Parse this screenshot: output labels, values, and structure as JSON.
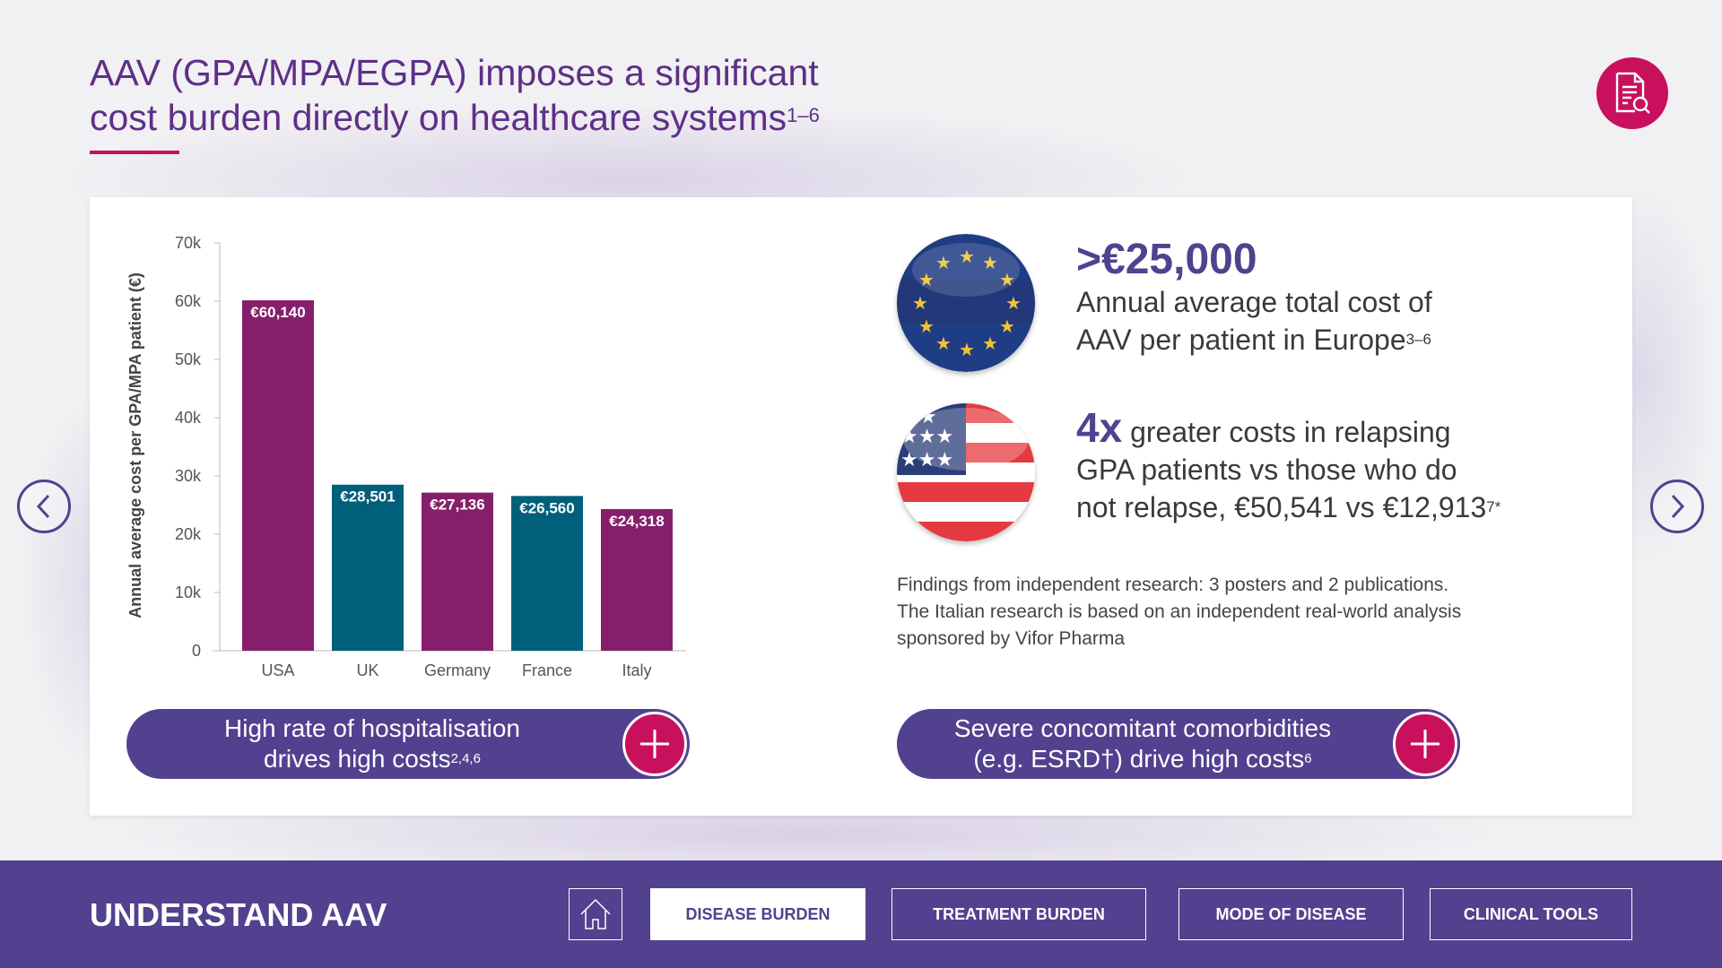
{
  "header": {
    "title_line1": "AAV (GPA/MPA/EGPA) imposes a significant",
    "title_line2": "cost burden directly on healthcare systems",
    "title_sup": "1–6",
    "reference_icon": "document-search-icon"
  },
  "chart_data": {
    "type": "bar",
    "title": "",
    "xlabel": "",
    "ylabel": "Annual average cost per GPA/MPA patient (€)",
    "ylim": [
      0,
      70000
    ],
    "yticks": [
      {
        "value": 0,
        "label": "0"
      },
      {
        "value": 10000,
        "label": "10k"
      },
      {
        "value": 20000,
        "label": "20k"
      },
      {
        "value": 30000,
        "label": "30k"
      },
      {
        "value": 40000,
        "label": "40k"
      },
      {
        "value": 50000,
        "label": "50k"
      },
      {
        "value": 60000,
        "label": "60k"
      },
      {
        "value": 70000,
        "label": "70k"
      }
    ],
    "categories": [
      "USA",
      "UK",
      "Germany",
      "France",
      "Italy"
    ],
    "values": [
      60140,
      28501,
      27136,
      26560,
      24318
    ],
    "data_labels": [
      "€60,140",
      "€28,501",
      "€27,136",
      "€26,560",
      "€24,318"
    ],
    "colors": [
      "#861f6b",
      "#005f7a",
      "#861f6b",
      "#005f7a",
      "#861f6b"
    ],
    "grid": false
  },
  "stats": {
    "europe": {
      "big": ">€25,000",
      "line1": "Annual average total cost of",
      "line2": "AAV per patient in Europe",
      "sup": "3–6",
      "flag": "eu-flag"
    },
    "usa": {
      "big": "4x",
      "line1": " greater costs in relapsing",
      "line2": "GPA patients vs those who do",
      "line3": "not relapse, €50,541 vs €12,913",
      "sup": "7*",
      "flag": "us-flag"
    }
  },
  "note": {
    "line1": "Findings from independent research: 3 posters and 2 publications.",
    "line2": "The Italian research is based on an independent real-world analysis",
    "line3": "sponsored by Vifor Pharma"
  },
  "pills": [
    {
      "line1": "High rate of hospitalisation",
      "line2": "drives high costs",
      "sup": "2,4,6"
    },
    {
      "line1": "Severe concomitant comorbidities",
      "line2": "(e.g. ESRD†) drive high costs",
      "sup": "6"
    }
  ],
  "footer": {
    "brand": "UNDERSTAND AAV",
    "nav": [
      "DISEASE BURDEN",
      "TREATMENT BURDEN",
      "MODE OF DISEASE",
      "CLINICAL TOOLS"
    ],
    "active": "DISEASE BURDEN"
  },
  "colors": {
    "purple": "#52418f",
    "magenta": "#c8105d",
    "bar_purple": "#861f6b",
    "bar_teal": "#005f7a"
  }
}
